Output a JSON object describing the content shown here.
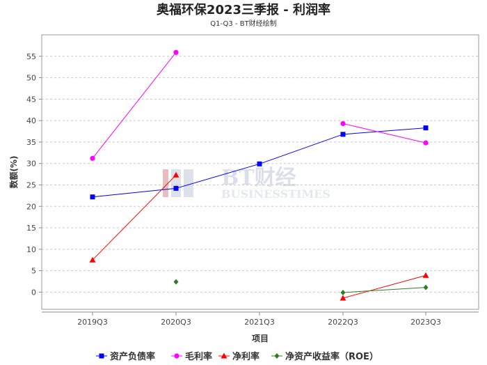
{
  "chart_data": {
    "type": "line",
    "title": "奥福环保2023三季报 - 利润率",
    "subtitle": "Q1-Q3 - BT财经绘制",
    "xlabel": "项目",
    "ylabel": "数额(%)",
    "categories": [
      "2019Q3",
      "2020Q3",
      "2021Q3",
      "2022Q3",
      "2023Q3"
    ],
    "ylim": [
      -4,
      60
    ],
    "yticks": [
      0,
      5,
      10,
      15,
      20,
      25,
      30,
      35,
      40,
      45,
      50,
      55
    ],
    "grid": true,
    "legend_position": "bottom",
    "watermark": [
      "BT财经",
      "BUSINESSTIMES"
    ],
    "series": [
      {
        "name": "资产负债率",
        "color": "#0000ff",
        "marker": "square",
        "values": [
          22.2,
          24.2,
          29.9,
          36.8,
          38.3
        ]
      },
      {
        "name": "毛利率",
        "color": "#ff00ff",
        "marker": "circle",
        "values": [
          31.2,
          55.9,
          null,
          39.3,
          34.8
        ]
      },
      {
        "name": "净利率",
        "color": "#ff0000",
        "marker": "triangle",
        "values": [
          7.5,
          27.3,
          null,
          -1.4,
          3.9
        ]
      },
      {
        "name": "净资产收益率（ROE）",
        "color": "#2e7d1e",
        "marker": "diamond",
        "values": [
          null,
          2.4,
          null,
          -0.1,
          1.1
        ]
      }
    ]
  }
}
